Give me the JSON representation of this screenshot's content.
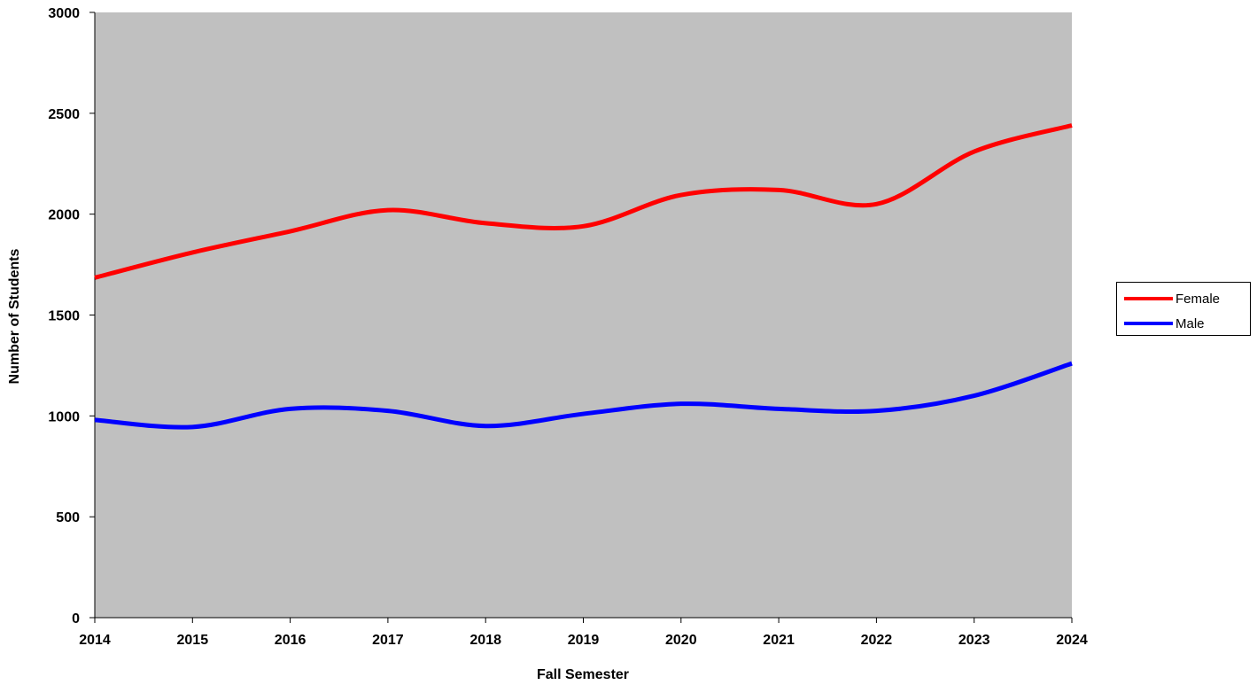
{
  "chart_data": {
    "type": "line",
    "title": "",
    "xlabel": "Fall Semester",
    "ylabel": "Number of Students",
    "x": [
      2014,
      2015,
      2016,
      2017,
      2018,
      2019,
      2020,
      2021,
      2022,
      2023,
      2024
    ],
    "x_tick_labels": [
      "2014",
      "2015",
      "2016",
      "2017",
      "2018",
      "2019",
      "2020",
      "2021",
      "2022",
      "2023",
      "2024"
    ],
    "y_tick_labels": [
      "0",
      "500",
      "1000",
      "1500",
      "2000",
      "2500",
      "3000"
    ],
    "ylim": [
      0,
      3000
    ],
    "grid": false,
    "plot_background": "#c0c0c0",
    "legend_position": "right",
    "series": [
      {
        "name": "Female",
        "color": "#ff0000",
        "values": [
          1685,
          1810,
          1915,
          2020,
          1955,
          1940,
          2095,
          2120,
          2050,
          2310,
          2440
        ]
      },
      {
        "name": "Male",
        "color": "#0000ff",
        "values": [
          980,
          945,
          1035,
          1025,
          950,
          1010,
          1060,
          1035,
          1025,
          1100,
          1260
        ]
      }
    ]
  }
}
